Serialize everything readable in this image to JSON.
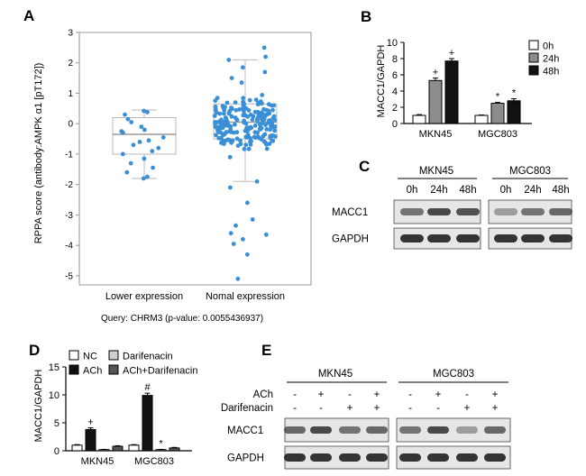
{
  "panel_letters": {
    "a": "A",
    "b": "B",
    "c": "C",
    "d": "D",
    "e": "E"
  },
  "colors": {
    "blue_points": "#3a8fd6",
    "box_line": "#b8b8b8",
    "white_bar": "#ffffff",
    "gray_bar": "#8c8c8c",
    "black_bar": "#111111",
    "lightgray_bar": "#cfcfcf",
    "darkgray_bar": "#555555"
  },
  "chart_data": [
    {
      "id": "A",
      "type": "scatter",
      "subtype": "box-strip",
      "ylabel": "RPPA score (antibody:AMPK α1 [pT172])",
      "ylim": [
        -5.3,
        3
      ],
      "yticks": [
        3,
        2,
        1,
        0,
        -1,
        -2,
        -3,
        -4,
        -5
      ],
      "categories": [
        "Lower expression",
        "Nomal expression"
      ],
      "caption": "Query: CHRM3 (p-value: 0.0055436937)",
      "boxes": [
        {
          "name": "Lower expression",
          "min": -1.8,
          "q1": -1.0,
          "median": -0.35,
          "q3": 0.2,
          "max": 0.45
        },
        {
          "name": "Nomal expression",
          "min": -1.9,
          "q1": -0.5,
          "median": 0.05,
          "q3": 0.65,
          "max": 2.1
        }
      ],
      "points": [
        {
          "group": 0,
          "values": [
            0.42,
            0.38,
            0.3,
            0.05,
            -0.1,
            -0.2,
            -0.3,
            -0.45,
            -0.55,
            -0.6,
            -0.7,
            -0.8,
            -0.9,
            -1.0,
            -1.15,
            -1.3,
            -1.45,
            -1.6,
            -1.75,
            -1.8,
            0.15,
            -0.25
          ]
        },
        {
          "group": 1,
          "values": [
            2.5,
            2.2,
            2.1,
            1.85,
            1.7,
            1.5,
            1.35,
            -2.6,
            -3.15,
            -3.35,
            -3.6,
            -3.65,
            -3.8,
            -3.95,
            -4.3,
            -5.1,
            -2.1,
            -1.9
          ]
        },
        {
          "group": 1,
          "dense": true,
          "count": 200,
          "center": 0.05,
          "spread": 0.85,
          "lower": -1.9,
          "upper": 1.9
        }
      ]
    },
    {
      "id": "B",
      "type": "bar",
      "ylabel": "MACC1/GAPDH",
      "ylim": [
        0,
        10
      ],
      "yticks": [
        0,
        2,
        4,
        6,
        8,
        10
      ],
      "categories": [
        "MKN45",
        "MGC803"
      ],
      "legend": [
        "0h",
        "24h",
        "48h"
      ],
      "series": [
        {
          "name": "0h",
          "values": [
            1.0,
            1.0
          ],
          "errors": [
            0.1,
            0.05
          ],
          "marks": [
            "",
            ""
          ]
        },
        {
          "name": "24h",
          "values": [
            5.3,
            2.5
          ],
          "errors": [
            0.3,
            0.1
          ],
          "marks": [
            "+",
            "*"
          ]
        },
        {
          "name": "48h",
          "values": [
            7.7,
            2.8
          ],
          "errors": [
            0.3,
            0.25
          ],
          "marks": [
            "+",
            "*"
          ]
        }
      ]
    },
    {
      "id": "D",
      "type": "bar",
      "ylabel": "MACC1/GAPDH",
      "ylim": [
        0,
        15
      ],
      "yticks": [
        0,
        5,
        10,
        15
      ],
      "categories": [
        "MKN45",
        "MGC803"
      ],
      "legend": [
        "NC",
        "Darifenacin",
        "ACh",
        "ACh+Darifenacin"
      ],
      "series": [
        {
          "name": "NC",
          "values": [
            1.0,
            1.0
          ],
          "errors": [
            0.1,
            0.1
          ],
          "marks": [
            "",
            ""
          ]
        },
        {
          "name": "ACh",
          "values": [
            3.8,
            9.9
          ],
          "errors": [
            0.3,
            0.4
          ],
          "marks": [
            "+",
            "#"
          ]
        },
        {
          "name": "Darifenacin",
          "values": [
            0.2,
            0.2
          ],
          "errors": [
            0.05,
            0.05
          ],
          "marks": [
            "",
            "*"
          ]
        },
        {
          "name": "ACh+Darifenacin",
          "values": [
            0.8,
            0.5
          ],
          "errors": [
            0.1,
            0.1
          ],
          "marks": [
            "",
            ""
          ]
        }
      ]
    }
  ],
  "blot_c": {
    "groups": [
      "MKN45",
      "MGC803"
    ],
    "lanes": [
      "0h",
      "24h",
      "48h",
      "0h",
      "24h",
      "48h"
    ],
    "rows": [
      "MACC1",
      "GAPDH"
    ]
  },
  "blot_e": {
    "groups": [
      "MKN45",
      "MGC803"
    ],
    "conditions": [
      {
        "label": "ACh",
        "signs": [
          "-",
          "+",
          "-",
          "+",
          "-",
          "+",
          "-",
          "+"
        ]
      },
      {
        "label": "Darifenacin",
        "signs": [
          "-",
          "-",
          "+",
          "+",
          "-",
          "-",
          "+",
          "+"
        ]
      }
    ],
    "rows": [
      "MACC1",
      "GAPDH"
    ]
  }
}
